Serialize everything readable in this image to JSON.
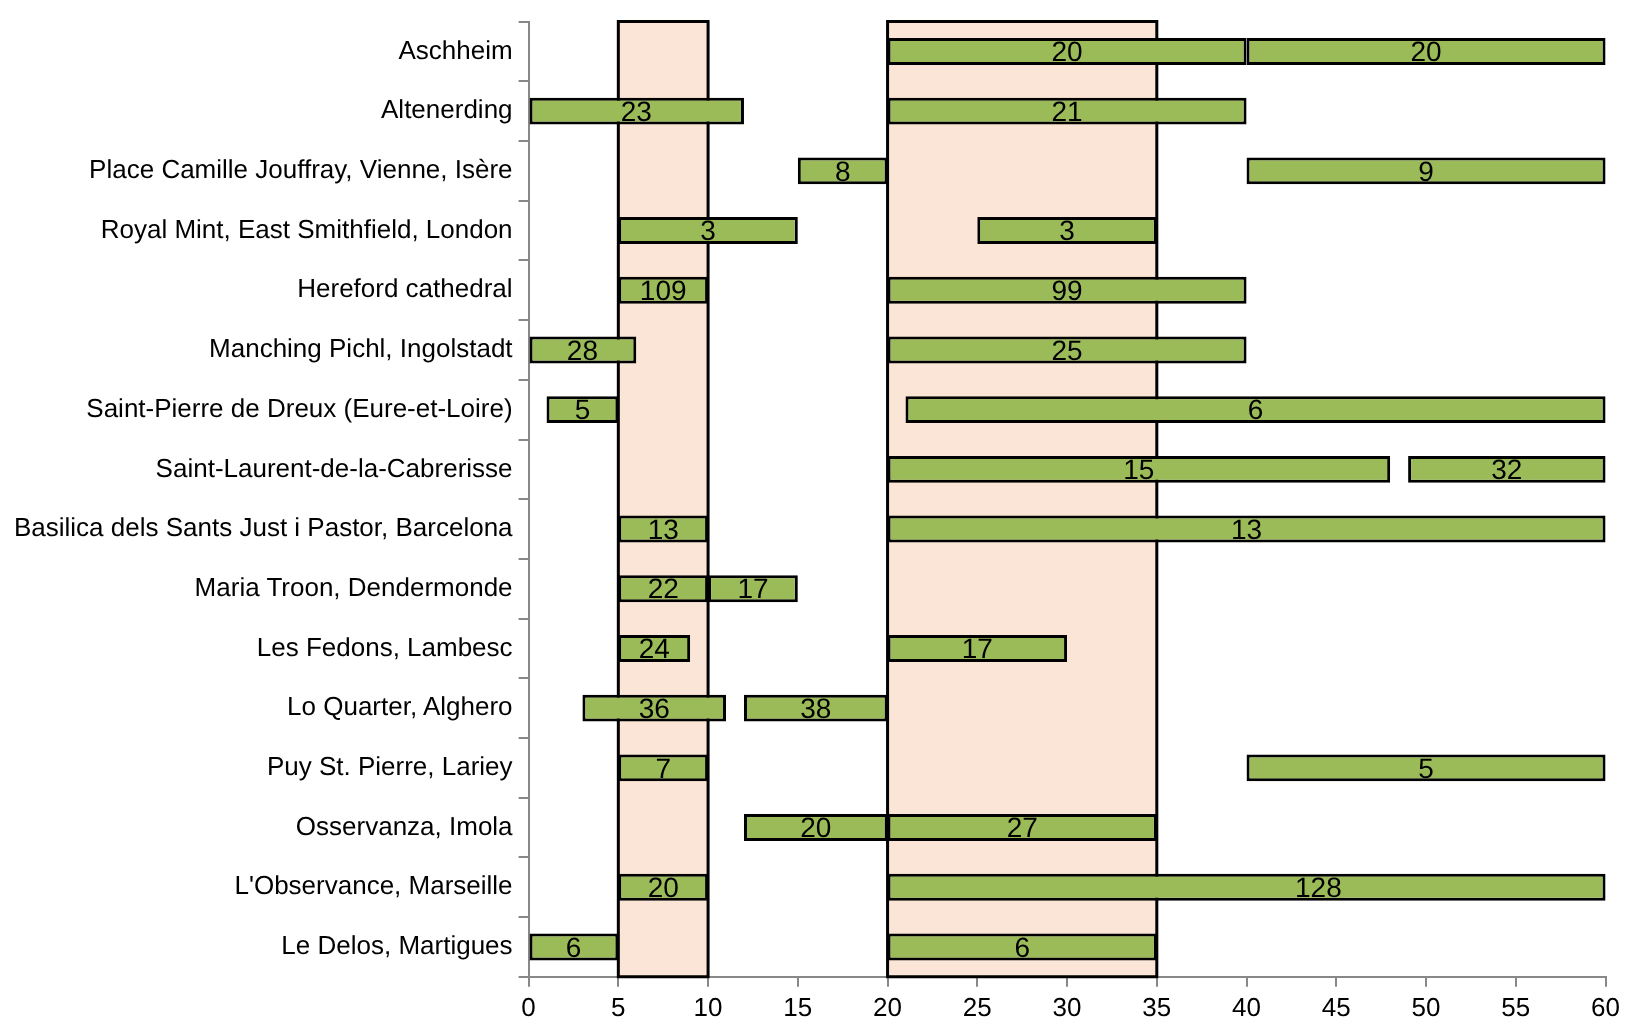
{
  "chart_data": {
    "type": "bar",
    "orientation": "horizontal",
    "categories": [
      "Aschheim",
      "Altenerding",
      "Place Camille Jouffray, Vienne, Isère",
      "Royal Mint, East Smithfield, London",
      "Hereford cathedral",
      "Manching Pichl, Ingolstadt",
      "Saint-Pierre de Dreux (Eure-et-Loire)",
      "Saint-Laurent-de-la-Cabrerisse",
      "Basilica dels Sants Just i Pastor, Barcelona",
      "Maria Troon, Dendermonde",
      "Les Fedons, Lambesc",
      "Lo Quarter, Alghero",
      "Puy St. Pierre, Lariey",
      "Osservanza, Imola",
      "L'Observance, Marseille",
      "Le Delos, Martigues"
    ],
    "series": [
      {
        "color": "#9bbb59",
        "base": [
          20,
          0,
          15,
          5,
          5,
          0,
          1,
          20,
          5,
          5,
          5,
          3,
          5,
          12,
          5,
          0
        ],
        "values": [
          20,
          12,
          5,
          10,
          5,
          6,
          4,
          28,
          5,
          5,
          4,
          8,
          5,
          8,
          5,
          5
        ]
      },
      {
        "color": "#9bbb59",
        "base": [
          40,
          20,
          40,
          25,
          20,
          20,
          21,
          49,
          20,
          10,
          20,
          12,
          40,
          20,
          20,
          20
        ],
        "values": [
          20,
          20,
          20,
          10,
          20,
          20,
          39,
          11,
          40,
          5,
          10,
          8,
          20,
          15,
          40,
          15
        ]
      }
    ],
    "xlim": [
      0,
      60
    ],
    "xticks": [
      0,
      5,
      10,
      15,
      20,
      25,
      30,
      35,
      40,
      45,
      50,
      55,
      60
    ],
    "bands": [
      {
        "axis": "x",
        "from": 5,
        "to": 10,
        "color": "#fbe5d6"
      },
      {
        "axis": "x",
        "from": 20,
        "to": 35,
        "color": "#fbe5d6"
      }
    ],
    "annotations": [
      {
        "text": "20",
        "x": 30,
        "y": "Aschheim"
      },
      {
        "text": "20",
        "x": 50,
        "y": "Aschheim"
      },
      {
        "text": "23",
        "x": 6,
        "y": "Altenerding"
      },
      {
        "text": "21",
        "x": 30,
        "y": "Altenerding"
      },
      {
        "text": "8",
        "x": 17.5,
        "y": "Place Camille Jouffray, Vienne, Isère"
      },
      {
        "text": "9",
        "x": 50,
        "y": "Place Camille Jouffray, Vienne, Isère"
      },
      {
        "text": "3",
        "x": 10,
        "y": "Royal Mint, East Smithfield, London"
      },
      {
        "text": "3",
        "x": 30,
        "y": "Royal Mint, East Smithfield, London"
      },
      {
        "text": "109",
        "x": 7.5,
        "y": "Hereford cathedral"
      },
      {
        "text": "99",
        "x": 30,
        "y": "Hereford cathedral"
      },
      {
        "text": "28",
        "x": 3,
        "y": "Manching Pichl, Ingolstadt"
      },
      {
        "text": "25",
        "x": 30,
        "y": "Manching Pichl, Ingolstadt"
      },
      {
        "text": "5",
        "x": 3,
        "y": "Saint-Pierre de Dreux (Eure-et-Loire)"
      },
      {
        "text": "6",
        "x": 40.5,
        "y": "Saint-Pierre de Dreux (Eure-et-Loire)"
      },
      {
        "text": "15",
        "x": 34,
        "y": "Saint-Laurent-de-la-Cabrerisse"
      },
      {
        "text": "32",
        "x": 54.5,
        "y": "Saint-Laurent-de-la-Cabrerisse"
      },
      {
        "text": "13",
        "x": 7.5,
        "y": "Basilica dels Sants Just i Pastor, Barcelona"
      },
      {
        "text": "13",
        "x": 40,
        "y": "Basilica dels Sants Just i Pastor, Barcelona"
      },
      {
        "text": "22",
        "x": 7.5,
        "y": "Maria Troon, Dendermonde"
      },
      {
        "text": "17",
        "x": 12.5,
        "y": "Maria Troon, Dendermonde"
      },
      {
        "text": "24",
        "x": 7,
        "y": "Les Fedons, Lambesc"
      },
      {
        "text": "17",
        "x": 25,
        "y": "Les Fedons, Lambesc"
      },
      {
        "text": "36",
        "x": 7,
        "y": "Lo Quarter, Alghero"
      },
      {
        "text": "38",
        "x": 16,
        "y": "Lo Quarter, Alghero"
      },
      {
        "text": "7",
        "x": 7.5,
        "y": "Puy St. Pierre, Lariey"
      },
      {
        "text": "5",
        "x": 50,
        "y": "Puy St. Pierre, Lariey"
      },
      {
        "text": "20",
        "x": 16,
        "y": "Osservanza, Imola"
      },
      {
        "text": "27",
        "x": 27.5,
        "y": "Osservanza, Imola"
      },
      {
        "text": "20",
        "x": 7.5,
        "y": "L'Observance, Marseille"
      },
      {
        "text": "128",
        "x": 44,
        "y": "L'Observance, Marseille"
      },
      {
        "text": "6",
        "x": 2.5,
        "y": "Le Delos, Martigues"
      },
      {
        "text": "6",
        "x": 27.5,
        "y": "Le Delos, Martigues"
      }
    ]
  }
}
